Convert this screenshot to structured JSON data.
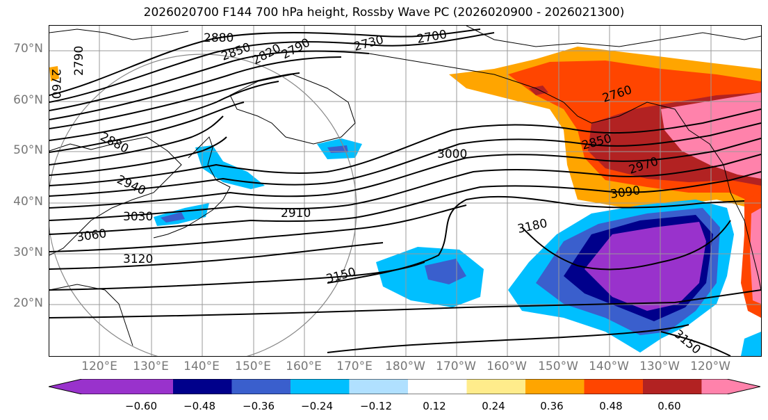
{
  "title": "2026020700 F144 700 hPa height, Rossby Wave PC (2026020900 - 2026021300)",
  "lat_labels": [
    "70°N",
    "60°N",
    "50°N",
    "40°N",
    "30°N",
    "20°N"
  ],
  "lon_labels": [
    "120°E",
    "130°E",
    "140°E",
    "150°E",
    "160°E",
    "170°E",
    "180°W",
    "170°W",
    "160°W",
    "150°W",
    "140°W",
    "130°W",
    "120°W"
  ],
  "contour_labels": [
    "2880",
    "2850",
    "2820",
    "2790",
    "2730",
    "2700",
    "2760",
    "2790",
    "2880",
    "2940",
    "3030",
    "3060",
    "3120",
    "2910",
    "3000",
    "3150",
    "3180",
    "2760",
    "2850",
    "2970",
    "3090",
    "3150"
  ],
  "colorbar": {
    "ticks": [
      "−0.60",
      "−0.48",
      "−0.36",
      "−0.24",
      "−0.12",
      "0.12",
      "0.24",
      "0.36",
      "0.48",
      "0.60"
    ],
    "colors": [
      "#9932cc",
      "#00008b",
      "#3a5fcd",
      "#00bfff",
      "#b0e0ff",
      "#ffffff",
      "#ffec8b",
      "#ffa500",
      "#ff4500",
      "#b22222",
      "#ff82ab"
    ]
  }
}
